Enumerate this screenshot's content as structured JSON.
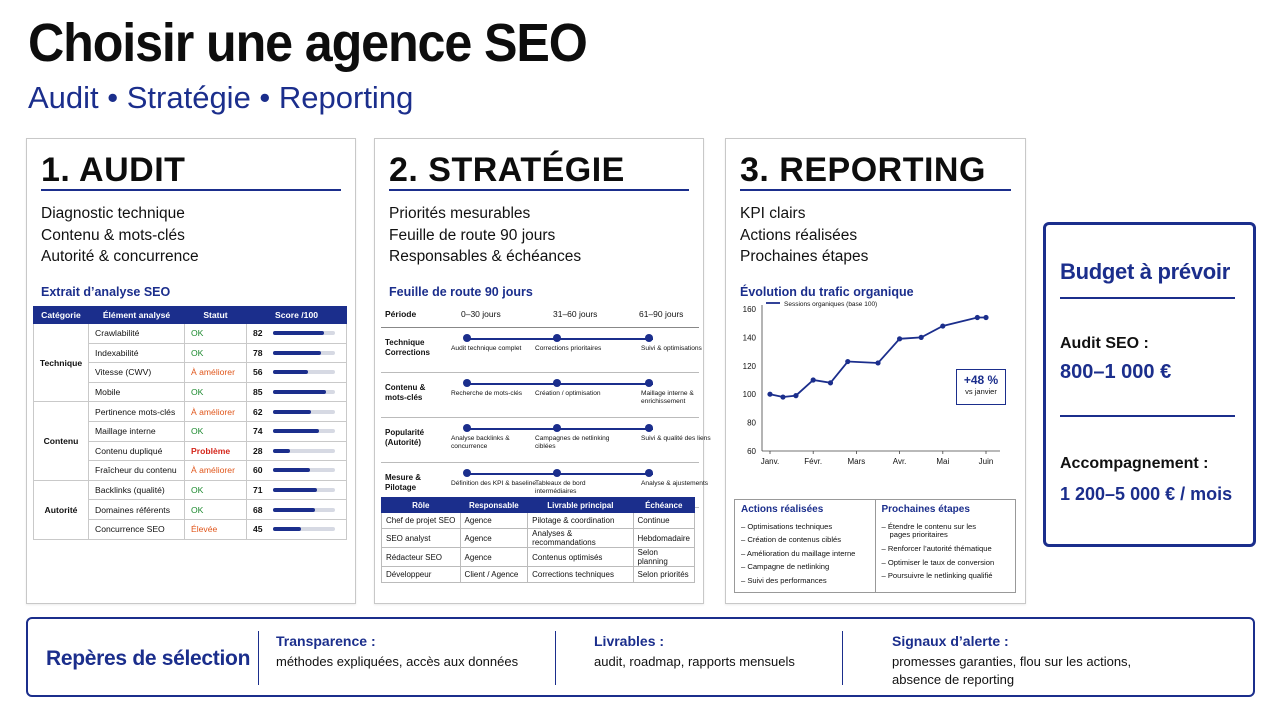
{
  "title": "Choisir une agence SEO",
  "subtitle": "Audit • Stratégie • Reporting",
  "audit": {
    "title": "1. AUDIT",
    "points": [
      "Diagnostic technique",
      "Contenu & mots-clés",
      "Autorité & concurrence"
    ],
    "section": "Extrait d’analyse SEO",
    "headers": [
      "Catégorie",
      "Élément analysé",
      "Statut",
      "Score /100"
    ],
    "groups": [
      {
        "category": "Technique",
        "rows": [
          {
            "item": "Crawlabilité",
            "status": "OK",
            "score": "82"
          },
          {
            "item": "Indexabilité",
            "status": "OK",
            "score": "78"
          },
          {
            "item": "Vitesse (CWV)",
            "status": "À améliorer",
            "score": "56"
          },
          {
            "item": "Mobile",
            "status": "OK",
            "score": "85"
          }
        ]
      },
      {
        "category": "Contenu",
        "rows": [
          {
            "item": "Pertinence mots-clés",
            "status": "À améliorer",
            "score": "62"
          },
          {
            "item": "Maillage interne",
            "status": "OK",
            "score": "74"
          },
          {
            "item": "Contenu dupliqué",
            "status": "Problème",
            "score": "28"
          },
          {
            "item": "Fraîcheur du contenu",
            "status": "À améliorer",
            "score": "60"
          }
        ]
      },
      {
        "category": "Autorité",
        "rows": [
          {
            "item": "Backlinks (qualité)",
            "status": "OK",
            "score": "71"
          },
          {
            "item": "Domaines référents",
            "status": "OK",
            "score": "68"
          },
          {
            "item": "Concurrence SEO",
            "status": "Élevée",
            "score": "45"
          }
        ]
      }
    ]
  },
  "strategy": {
    "title": "2. STRATÉGIE",
    "points": [
      "Priorités mesurables",
      "Feuille de route 90 jours",
      "Responsables & échéances"
    ],
    "section": "Feuille de route 90 jours",
    "period_label": "Période",
    "periods": [
      "0–30 jours",
      "31–60 jours",
      "61–90 jours"
    ],
    "rows": [
      {
        "label": "Technique Corrections",
        "items": [
          "Audit technique complet",
          "Corrections prioritaires",
          "Suivi & optimisations"
        ]
      },
      {
        "label": "Contenu & mots-clés",
        "items": [
          "Recherche de mots-clés",
          "Création / optimisation",
          "Maillage interne & enrichissement"
        ]
      },
      {
        "label": "Popularité (Autorité)",
        "items": [
          "Analyse backlinks & concurrence",
          "Campagnes de netlinking ciblées",
          "Suivi & qualité des liens"
        ]
      },
      {
        "label": "Mesure & Pilotage",
        "items": [
          "Définition des KPI & baseline",
          "Tableaux de bord intermédiaires",
          "Analyse & ajustements"
        ]
      }
    ],
    "table_headers": [
      "Rôle",
      "Responsable",
      "Livrable principal",
      "Échéance"
    ],
    "table_rows": [
      [
        "Chef de projet SEO",
        "Agence",
        "Pilotage & coordination",
        "Continue"
      ],
      [
        "SEO analyst",
        "Agence",
        "Analyses & recommandations",
        "Hebdomadaire"
      ],
      [
        "Rédacteur SEO",
        "Agence",
        "Contenus optimisés",
        "Selon planning"
      ],
      [
        "Développeur",
        "Client / Agence",
        "Corrections techniques",
        "Selon priorités"
      ]
    ]
  },
  "reporting": {
    "title": "3. REPORTING",
    "points": [
      "KPI clairs",
      "Actions réalisées",
      "Prochaines étapes"
    ],
    "section": "Évolution du trafic organique",
    "badge_value": "+48 %",
    "badge_sub": "vs janvier",
    "actions_title": "Actions réalisées",
    "actions": [
      "– Optimisations techniques",
      "– Création de contenus ciblés",
      "– Amélioration du maillage interne",
      "– Campagne de netlinking",
      "– Suivi des performances"
    ],
    "next_title": "Prochaines étapes",
    "next": [
      "– Étendre le contenu sur les",
      "   pages prioritaires",
      "– Renforcer l’autorité thématique",
      "– Optimiser le taux de conversion",
      "– Poursuivre le netlinking qualifié"
    ]
  },
  "chart_data": {
    "type": "line",
    "title": "Évolution du trafic organique",
    "categories": [
      "Janv.",
      "Févr.",
      "Mars",
      "Avr.",
      "Mai",
      "Juin"
    ],
    "x": [
      0,
      0.3,
      0.6,
      1,
      1.4,
      1.8,
      2.5,
      3,
      3.5,
      4,
      4.8,
      5
    ],
    "series": [
      {
        "name": "Sessions organiques (base 100)",
        "values": [
          100,
          98,
          99,
          110,
          108,
          123,
          122,
          139,
          140,
          148,
          154,
          154
        ]
      }
    ],
    "ylim": [
      60,
      160
    ],
    "yticks": [
      60,
      80,
      100,
      120,
      140,
      160
    ],
    "grid": false,
    "legend": "top-left",
    "color": "#1b2e8c"
  },
  "budget": {
    "title": "Budget à prévoir",
    "audit_label": "Audit SEO :",
    "audit_value": "800–1 000 €",
    "acc_label": "Accompagnement :",
    "acc_value": "1 200–5 000 € / mois"
  },
  "footer": {
    "title": "Repères de sélection",
    "cols": [
      {
        "title": "Transparence :",
        "text": "méthodes expliquées, accès aux données"
      },
      {
        "title": "Livrables :",
        "text": "audit, roadmap, rapports mensuels"
      },
      {
        "title": "Signaux d’alerte :",
        "text": "promesses garanties, flou sur les actions, absence de reporting"
      }
    ]
  },
  "colors": {
    "accent": "#1b2e8c",
    "ok": "#1d8a2f",
    "warn": "#e0561b",
    "bad": "#d4261b"
  }
}
